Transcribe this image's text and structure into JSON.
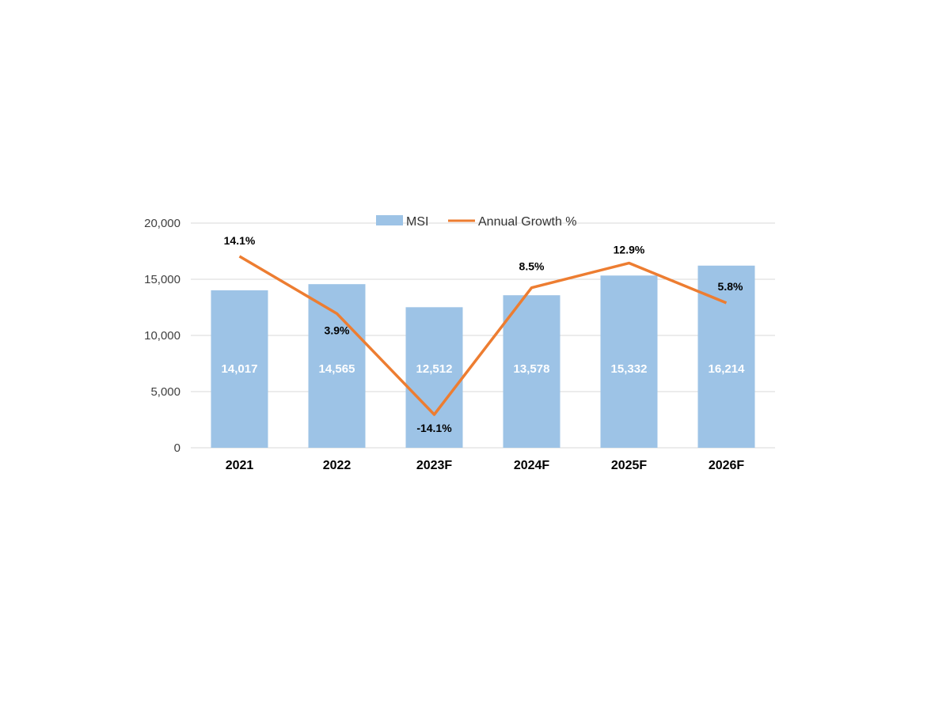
{
  "chart_data": {
    "type": "bar",
    "categories": [
      "2021",
      "2022",
      "2023F",
      "2024F",
      "2025F",
      "2026F"
    ],
    "series": [
      {
        "name": "MSI",
        "type": "bar",
        "values": [
          14017,
          14565,
          12512,
          13578,
          15332,
          16214
        ],
        "labels": [
          "14,017",
          "14,565",
          "12,512",
          "13,578",
          "15,332",
          "16,214"
        ]
      },
      {
        "name": "Annual Growth %",
        "type": "line",
        "values": [
          14.1,
          3.9,
          -14.1,
          8.5,
          12.9,
          5.8
        ],
        "labels": [
          "14.1%",
          "3.9%",
          "-14.1%",
          "8.5%",
          "12.9%",
          "5.8%"
        ]
      }
    ],
    "yticks": [
      "20,000",
      "15,000",
      "10,000",
      "5,000",
      "0"
    ],
    "ylim": [
      0,
      20000
    ],
    "grid": true,
    "legend_position": "top",
    "colors": {
      "bar": "#9dc3e6",
      "line": "#ed7d31",
      "grid": "#d9d9d9"
    }
  }
}
